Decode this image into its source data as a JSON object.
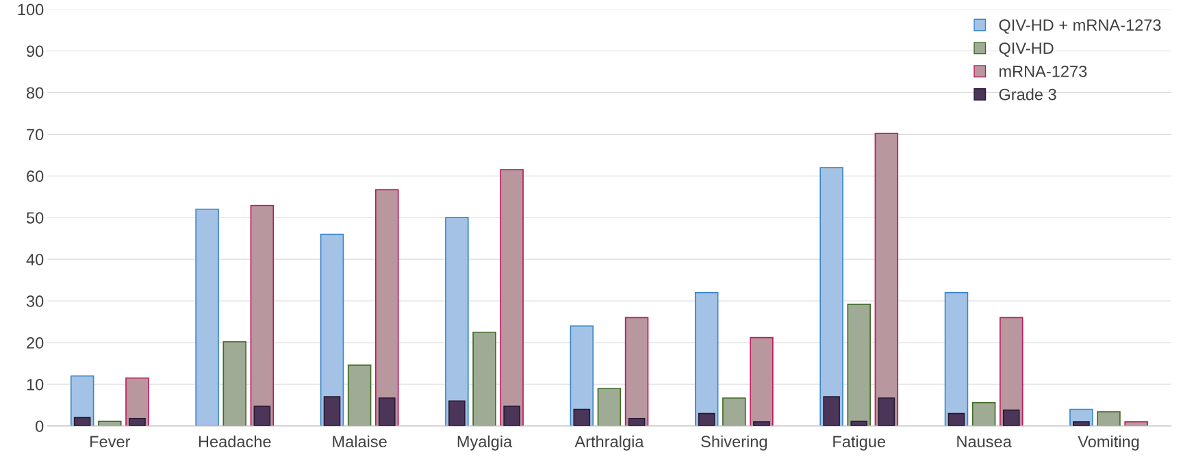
{
  "chart_data": {
    "type": "bar",
    "categories": [
      "Fever",
      "Headache",
      "Malaise",
      "Myalgia",
      "Arthralgia",
      "Shivering",
      "Fatigue",
      "Nausea",
      "Vomiting"
    ],
    "series": [
      {
        "name": "QIV-HD + mRNA-1273",
        "color": "#a4c2e6",
        "values": [
          12,
          52,
          46,
          50,
          24,
          32,
          62,
          32,
          4
        ]
      },
      {
        "name": "QIV-HD",
        "color": "#9fab94",
        "values": [
          1.1,
          20.2,
          14.6,
          22.5,
          9,
          6.7,
          29.2,
          5.6,
          3.4
        ]
      },
      {
        "name": "mRNA-1273",
        "color": "#b8979f",
        "values": [
          11.5,
          52.9,
          56.7,
          61.5,
          26,
          21.2,
          70.2,
          26,
          1
        ]
      },
      {
        "name": "Grade 3",
        "color": "#4b3558",
        "values": [
          2,
          null,
          7,
          6,
          4,
          3,
          7,
          3,
          1
        ]
      },
      {
        "color": "#4b3558",
        "values": [
          null,
          null,
          null,
          null,
          null,
          null,
          1.1,
          null,
          null
        ]
      },
      {
        "color": "#4b3558",
        "values": [
          1.8,
          4.7,
          6.7,
          4.7,
          1.8,
          1,
          6.7,
          3.8,
          null
        ]
      }
    ],
    "ylim": [
      0,
      100
    ],
    "yticks": [
      0,
      10,
      20,
      30,
      40,
      50,
      60,
      70,
      80,
      90,
      100
    ],
    "grid": "y",
    "legend": "top right"
  }
}
